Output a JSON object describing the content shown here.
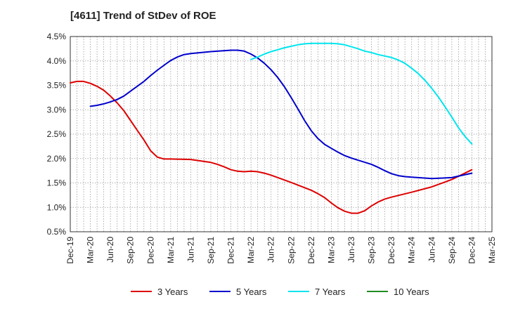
{
  "chart_data": {
    "type": "line",
    "title": "[4611]  Trend of StDev of ROE",
    "xlabel": "",
    "ylabel": "",
    "x_ticks": [
      "Dec-19",
      "Mar-20",
      "Jun-20",
      "Sep-20",
      "Dec-20",
      "Mar-21",
      "Jun-21",
      "Sep-21",
      "Dec-21",
      "Mar-22",
      "Jun-22",
      "Sep-22",
      "Dec-22",
      "Mar-23",
      "Jun-23",
      "Sep-23",
      "Dec-23",
      "Mar-24",
      "Jun-24",
      "Sep-24",
      "Dec-24",
      "Mar-25"
    ],
    "y_ticks": [
      "0.5%",
      "1.0%",
      "1.5%",
      "2.0%",
      "2.5%",
      "3.0%",
      "3.5%",
      "4.0%",
      "4.5%"
    ],
    "ylim": [
      0.5,
      4.5
    ],
    "grid": true,
    "legend_position": "bottom",
    "series": [
      {
        "name": "3 Years",
        "color": "#dd0000",
        "points": [
          [
            "Dec-19",
            3.55
          ],
          [
            "Jan-20",
            3.58
          ],
          [
            "Feb-20",
            3.58
          ],
          [
            "Mar-20",
            3.54
          ],
          [
            "Apr-20",
            3.48
          ],
          [
            "May-20",
            3.4
          ],
          [
            "Jun-20",
            3.28
          ],
          [
            "Jul-20",
            3.14
          ],
          [
            "Aug-20",
            2.98
          ],
          [
            "Sep-20",
            2.78
          ],
          [
            "Oct-20",
            2.58
          ],
          [
            "Nov-20",
            2.38
          ],
          [
            "Dec-20",
            2.16
          ],
          [
            "Jan-21",
            2.03
          ],
          [
            "Feb-21",
            1.99
          ],
          [
            "Mar-21",
            1.99
          ],
          [
            "Jun-21",
            1.98
          ],
          [
            "Sep-21",
            1.92
          ],
          [
            "Oct-21",
            1.88
          ],
          [
            "Nov-21",
            1.83
          ],
          [
            "Dec-21",
            1.77
          ],
          [
            "Jan-22",
            1.74
          ],
          [
            "Feb-22",
            1.73
          ],
          [
            "Mar-22",
            1.74
          ],
          [
            "Apr-22",
            1.73
          ],
          [
            "May-22",
            1.7
          ],
          [
            "Jun-22",
            1.66
          ],
          [
            "Sep-22",
            1.51
          ],
          [
            "Dec-22",
            1.35
          ],
          [
            "Jan-23",
            1.28
          ],
          [
            "Feb-23",
            1.2
          ],
          [
            "Mar-23",
            1.09
          ],
          [
            "Apr-23",
            0.99
          ],
          [
            "May-23",
            0.92
          ],
          [
            "Jun-23",
            0.88
          ],
          [
            "Jul-23",
            0.88
          ],
          [
            "Aug-23",
            0.93
          ],
          [
            "Sep-23",
            1.03
          ],
          [
            "Oct-23",
            1.11
          ],
          [
            "Nov-23",
            1.17
          ],
          [
            "Dec-23",
            1.21
          ],
          [
            "Mar-24",
            1.31
          ],
          [
            "Jun-24",
            1.42
          ],
          [
            "Sep-24",
            1.57
          ],
          [
            "Dec-24",
            1.77
          ]
        ]
      },
      {
        "name": "5 Years",
        "color": "#0000cc",
        "points": [
          [
            "Mar-20",
            3.07
          ],
          [
            "Apr-20",
            3.09
          ],
          [
            "May-20",
            3.12
          ],
          [
            "Jun-20",
            3.16
          ],
          [
            "Jul-20",
            3.21
          ],
          [
            "Aug-20",
            3.28
          ],
          [
            "Sep-20",
            3.38
          ],
          [
            "Oct-20",
            3.48
          ],
          [
            "Nov-20",
            3.58
          ],
          [
            "Dec-20",
            3.7
          ],
          [
            "Jan-21",
            3.81
          ],
          [
            "Feb-21",
            3.91
          ],
          [
            "Mar-21",
            4.01
          ],
          [
            "Apr-21",
            4.08
          ],
          [
            "May-21",
            4.13
          ],
          [
            "Jun-21",
            4.15
          ],
          [
            "Sep-21",
            4.19
          ],
          [
            "Dec-21",
            4.22
          ],
          [
            "Jan-22",
            4.22
          ],
          [
            "Feb-22",
            4.2
          ],
          [
            "Mar-22",
            4.14
          ],
          [
            "Apr-22",
            4.06
          ],
          [
            "May-22",
            3.95
          ],
          [
            "Jun-22",
            3.82
          ],
          [
            "Jul-22",
            3.66
          ],
          [
            "Aug-22",
            3.47
          ],
          [
            "Sep-22",
            3.25
          ],
          [
            "Oct-22",
            3.02
          ],
          [
            "Nov-22",
            2.78
          ],
          [
            "Dec-22",
            2.57
          ],
          [
            "Jan-23",
            2.41
          ],
          [
            "Feb-23",
            2.29
          ],
          [
            "Mar-23",
            2.21
          ],
          [
            "Apr-23",
            2.13
          ],
          [
            "May-23",
            2.06
          ],
          [
            "Jun-23",
            2.01
          ],
          [
            "Sep-23",
            1.88
          ],
          [
            "Oct-23",
            1.82
          ],
          [
            "Nov-23",
            1.75
          ],
          [
            "Dec-23",
            1.69
          ],
          [
            "Jan-24",
            1.65
          ],
          [
            "Feb-24",
            1.63
          ],
          [
            "Mar-24",
            1.62
          ],
          [
            "Jun-24",
            1.59
          ],
          [
            "Sep-24",
            1.61
          ],
          [
            "Dec-24",
            1.7
          ]
        ]
      },
      {
        "name": "7 Years",
        "color": "#00e5ee",
        "points": [
          [
            "Mar-22",
            4.03
          ],
          [
            "Apr-22",
            4.08
          ],
          [
            "May-22",
            4.14
          ],
          [
            "Jun-22",
            4.19
          ],
          [
            "Jul-22",
            4.23
          ],
          [
            "Aug-22",
            4.27
          ],
          [
            "Sep-22",
            4.3
          ],
          [
            "Oct-22",
            4.33
          ],
          [
            "Nov-22",
            4.35
          ],
          [
            "Dec-22",
            4.36
          ],
          [
            "Mar-23",
            4.36
          ],
          [
            "Apr-23",
            4.35
          ],
          [
            "May-23",
            4.33
          ],
          [
            "Jun-23",
            4.29
          ],
          [
            "Jul-23",
            4.25
          ],
          [
            "Aug-23",
            4.2
          ],
          [
            "Sep-23",
            4.17
          ],
          [
            "Oct-23",
            4.13
          ],
          [
            "Nov-23",
            4.1
          ],
          [
            "Dec-23",
            4.07
          ],
          [
            "Jan-24",
            4.02
          ],
          [
            "Feb-24",
            3.95
          ],
          [
            "Mar-24",
            3.85
          ],
          [
            "Apr-24",
            3.74
          ],
          [
            "May-24",
            3.6
          ],
          [
            "Jun-24",
            3.44
          ],
          [
            "Jul-24",
            3.26
          ],
          [
            "Aug-24",
            3.06
          ],
          [
            "Sep-24",
            2.85
          ],
          [
            "Oct-24",
            2.63
          ],
          [
            "Nov-24",
            2.45
          ],
          [
            "Dec-24",
            2.3
          ]
        ]
      },
      {
        "name": "10 Years",
        "color": "#228b22",
        "points": []
      }
    ]
  }
}
